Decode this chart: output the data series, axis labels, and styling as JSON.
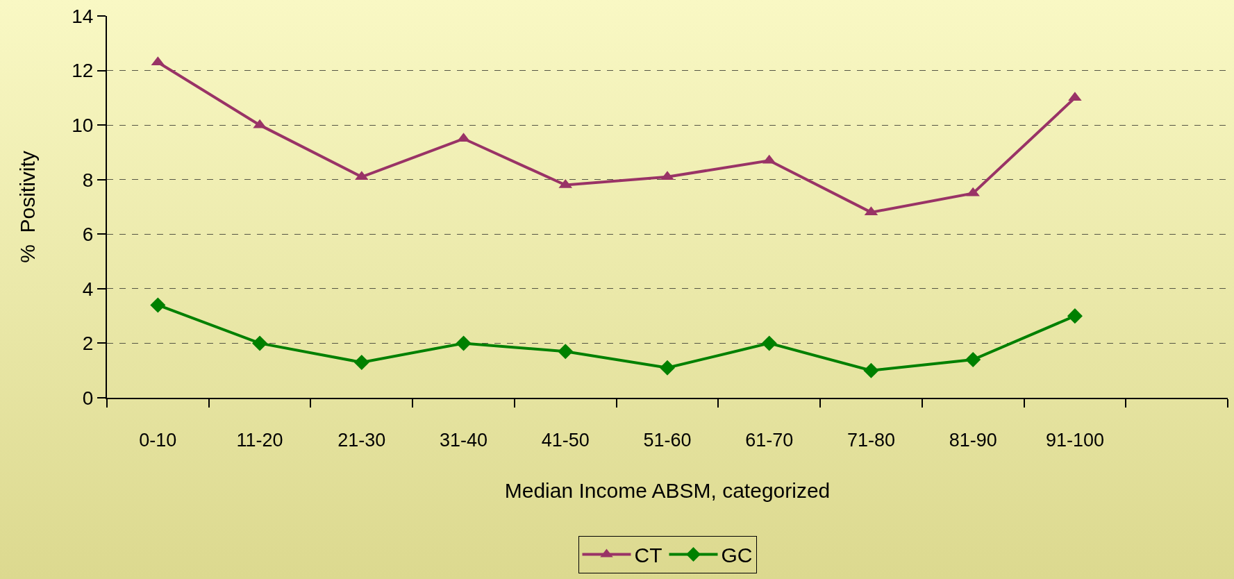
{
  "chart_data": {
    "type": "line",
    "xlabel": "Median Income ABSM, categorized",
    "ylabel": "%  Positivity",
    "categories": [
      "0-10",
      "11-20",
      "21-30",
      "31-40",
      "41-50",
      "51-60",
      "61-70",
      "71-80",
      "81-90",
      "91-100",
      null
    ],
    "series": [
      {
        "name": "CT",
        "color": "#993366",
        "marker": "triangle",
        "values": [
          12.3,
          10.0,
          8.1,
          9.5,
          7.8,
          8.1,
          8.7,
          6.8,
          7.5,
          11.0,
          null
        ]
      },
      {
        "name": "GC",
        "color": "#008000",
        "marker": "diamond",
        "values": [
          3.4,
          2.0,
          1.3,
          2.0,
          1.7,
          1.1,
          2.0,
          1.0,
          1.4,
          3.0,
          null
        ]
      }
    ],
    "ylim": [
      0,
      14
    ],
    "yticks": [
      0,
      2,
      4,
      6,
      8,
      10,
      12,
      14
    ],
    "grid": "y",
    "legend": "bottom",
    "line_style": "solid"
  }
}
